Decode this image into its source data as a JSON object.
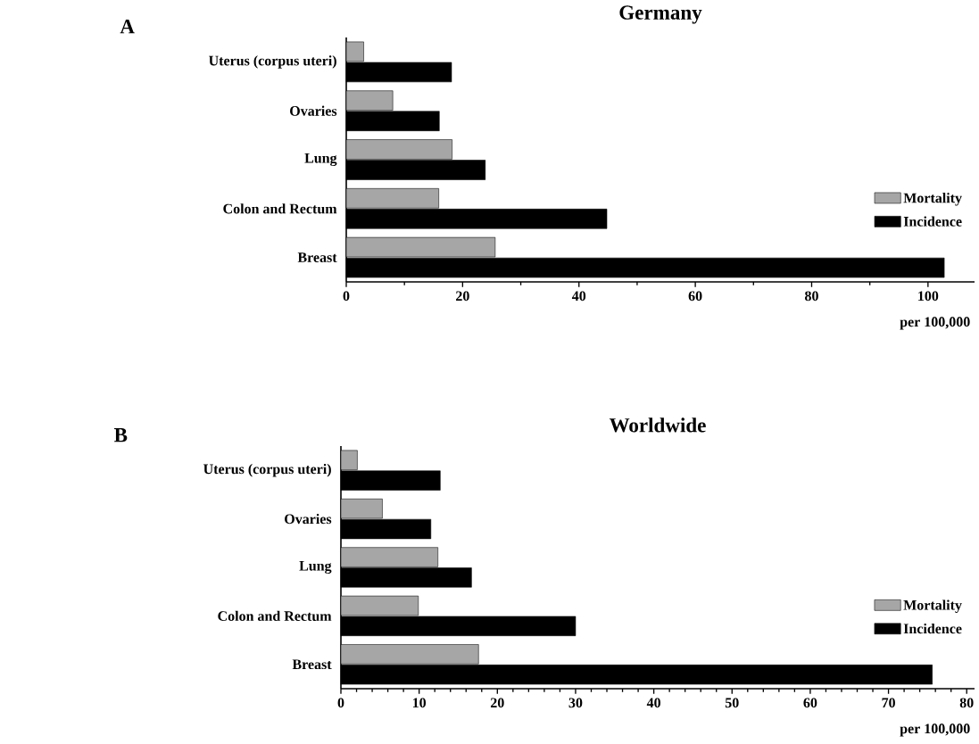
{
  "chart_data": [
    {
      "type": "bar",
      "orientation": "horizontal",
      "title": "Germany",
      "xlabel": "per 100,000",
      "categories": [
        "Uterus (corpus uteri)",
        "Ovaries",
        "Lung",
        "Colon and Rectum",
        "Breast"
      ],
      "series": [
        {
          "name": "Mortality",
          "color": "#a6a6a6",
          "values": [
            3.0,
            8.0,
            18.2,
            15.9,
            25.6
          ]
        },
        {
          "name": "Incidence",
          "color": "#000000",
          "values": [
            18.1,
            16.0,
            23.9,
            44.8,
            102.8
          ]
        }
      ],
      "xlim": [
        0,
        108
      ],
      "xticks": [
        0,
        20,
        40,
        60,
        80,
        100
      ],
      "legend": "bottom right",
      "annotations": [
        "A"
      ]
    },
    {
      "type": "bar",
      "orientation": "horizontal",
      "title": "Worldwide",
      "xlabel": "per 100,000",
      "categories": [
        "Uterus (corpus uteri)",
        "Ovaries",
        "Lung",
        "Colon and Rectum",
        "Breast"
      ],
      "series": [
        {
          "name": "Mortality",
          "color": "#a6a6a6",
          "values": [
            2.1,
            5.3,
            12.4,
            9.9,
            17.6
          ]
        },
        {
          "name": "Incidence",
          "color": "#000000",
          "values": [
            12.7,
            11.5,
            16.7,
            30.0,
            75.6
          ]
        }
      ],
      "xlim": [
        0,
        81
      ],
      "xticks": [
        0,
        10,
        20,
        30,
        40,
        50,
        60,
        70,
        80
      ],
      "legend": "bottom right",
      "annotations": [
        "B"
      ]
    }
  ]
}
